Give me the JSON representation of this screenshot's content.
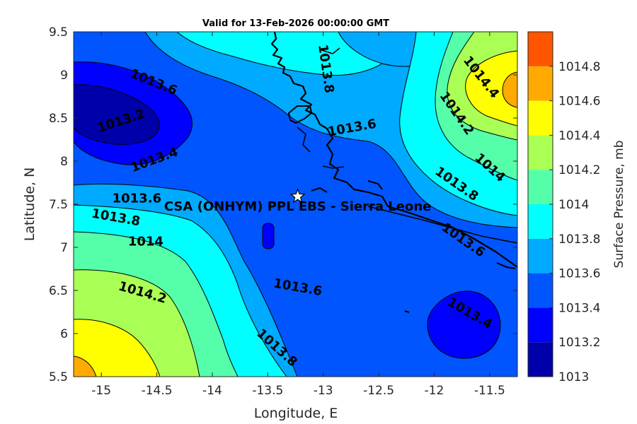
{
  "title": "Valid for 13-Feb-2026 00:00:00 GMT",
  "x_axis": {
    "label": "Longitude, E",
    "range": [
      -15.25,
      -11.25
    ],
    "ticks": [
      {
        "value": -15,
        "label": "-15"
      },
      {
        "value": -14.5,
        "label": "-14.5"
      },
      {
        "value": -14,
        "label": "-14"
      },
      {
        "value": -13.5,
        "label": "-13.5"
      },
      {
        "value": -13,
        "label": "-13"
      },
      {
        "value": -12.5,
        "label": "-12.5"
      },
      {
        "value": -12,
        "label": "-12"
      },
      {
        "value": -11.5,
        "label": "-11.5"
      }
    ]
  },
  "y_axis": {
    "label": "Latitude, N",
    "range": [
      5.5,
      9.5
    ],
    "ticks": [
      {
        "value": 5.5,
        "label": "5.5"
      },
      {
        "value": 6,
        "label": "6"
      },
      {
        "value": 6.5,
        "label": "6.5"
      },
      {
        "value": 7,
        "label": "7"
      },
      {
        "value": 7.5,
        "label": "7.5"
      },
      {
        "value": 8,
        "label": "8"
      },
      {
        "value": 8.5,
        "label": "8.5"
      },
      {
        "value": 9,
        "label": "9"
      },
      {
        "value": 9.5,
        "label": "9.5"
      }
    ]
  },
  "colorbar": {
    "label": "Surface Pressure, mb",
    "levels": [
      {
        "from": 1013.0,
        "to": 1013.2,
        "color": "#0000aa"
      },
      {
        "from": 1013.2,
        "to": 1013.4,
        "color": "#0000ff"
      },
      {
        "from": 1013.4,
        "to": 1013.6,
        "color": "#0055ff"
      },
      {
        "from": 1013.6,
        "to": 1013.8,
        "color": "#00aaff"
      },
      {
        "from": 1013.8,
        "to": 1014.0,
        "color": "#00ffff"
      },
      {
        "from": 1014.0,
        "to": 1014.2,
        "color": "#55ffaa"
      },
      {
        "from": 1014.2,
        "to": 1014.4,
        "color": "#aaff55"
      },
      {
        "from": 1014.4,
        "to": 1014.6,
        "color": "#ffff00"
      },
      {
        "from": 1014.6,
        "to": 1014.8,
        "color": "#ffaa00"
      },
      {
        "from": 1014.8,
        "to": 1015.0,
        "color": "#ff5500"
      }
    ],
    "ticks": [
      {
        "value": 1013,
        "label": "1013"
      },
      {
        "value": 1013.2,
        "label": "1013.2"
      },
      {
        "value": 1013.4,
        "label": "1013.4"
      },
      {
        "value": 1013.6,
        "label": "1013.6"
      },
      {
        "value": 1013.8,
        "label": "1013.8"
      },
      {
        "value": 1014,
        "label": "1014"
      },
      {
        "value": 1014.2,
        "label": "1014.2"
      },
      {
        "value": 1014.4,
        "label": "1014.4"
      },
      {
        "value": 1014.6,
        "label": "1014.6"
      },
      {
        "value": 1014.8,
        "label": "1014.8"
      }
    ]
  },
  "site": {
    "name": "CSA (ONHYM) PPL EBS  - Sierra Leone",
    "lon": -13.23,
    "lat": 7.59,
    "marker": "star-icon"
  },
  "contour_labels": [
    {
      "text": "1013.6",
      "lon": -14.53,
      "lat": 8.91,
      "angle": 22
    },
    {
      "text": "1013.2",
      "lon": -14.82,
      "lat": 8.46,
      "angle": -18
    },
    {
      "text": "1013.4",
      "lon": -14.52,
      "lat": 8.01,
      "angle": -20
    },
    {
      "text": "1013.6",
      "lon": -14.68,
      "lat": 7.56,
      "angle": 0
    },
    {
      "text": "1013.8",
      "lon": -14.87,
      "lat": 7.34,
      "angle": 10
    },
    {
      "text": "1014",
      "lon": -14.6,
      "lat": 7.06,
      "angle": 0
    },
    {
      "text": "1014.2",
      "lon": -14.63,
      "lat": 6.47,
      "angle": 16
    },
    {
      "text": "1013.6",
      "lon": -13.23,
      "lat": 6.53,
      "angle": 10
    },
    {
      "text": "1013.8",
      "lon": -13.42,
      "lat": 5.83,
      "angle": 42
    },
    {
      "text": "1013.8",
      "lon": -12.98,
      "lat": 9.07,
      "angle": 82
    },
    {
      "text": "1013.6",
      "lon": -12.74,
      "lat": 8.38,
      "angle": -10
    },
    {
      "text": "1014.4",
      "lon": -11.58,
      "lat": 8.97,
      "angle": 52
    },
    {
      "text": "1014.2",
      "lon": -11.8,
      "lat": 8.55,
      "angle": 55
    },
    {
      "text": "1014",
      "lon": -11.5,
      "lat": 7.92,
      "angle": 42
    },
    {
      "text": "1013.8",
      "lon": -11.8,
      "lat": 7.73,
      "angle": 35
    },
    {
      "text": "1013.6",
      "lon": -11.74,
      "lat": 7.08,
      "angle": 35
    },
    {
      "text": "1013.4",
      "lon": -11.68,
      "lat": 6.23,
      "angle": 30
    }
  ],
  "colors": {
    "axis": "#262626",
    "contour_line": "#000000",
    "coastline": "#000000"
  }
}
